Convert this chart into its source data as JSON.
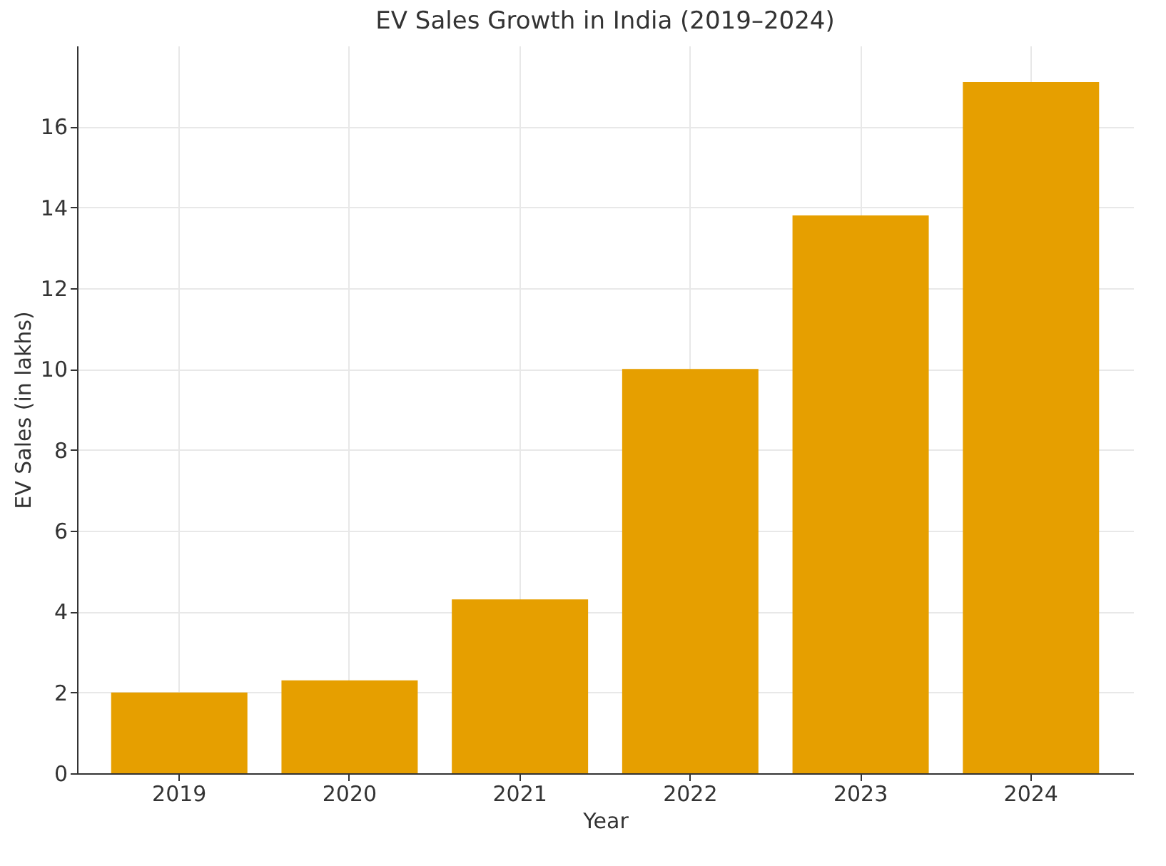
{
  "chart_data": {
    "type": "bar",
    "title": "EV Sales Growth in India (2019–2024)",
    "xlabel": "Year",
    "ylabel": "EV Sales (in lakhs)",
    "categories": [
      "2019",
      "2020",
      "2021",
      "2022",
      "2023",
      "2024"
    ],
    "values": [
      2.0,
      2.3,
      4.3,
      10.0,
      13.8,
      17.1
    ],
    "color": "#e69f00",
    "ylim": [
      0,
      18
    ],
    "yticks": [
      0,
      2,
      4,
      6,
      8,
      10,
      12,
      14,
      16
    ],
    "grid": true
  }
}
